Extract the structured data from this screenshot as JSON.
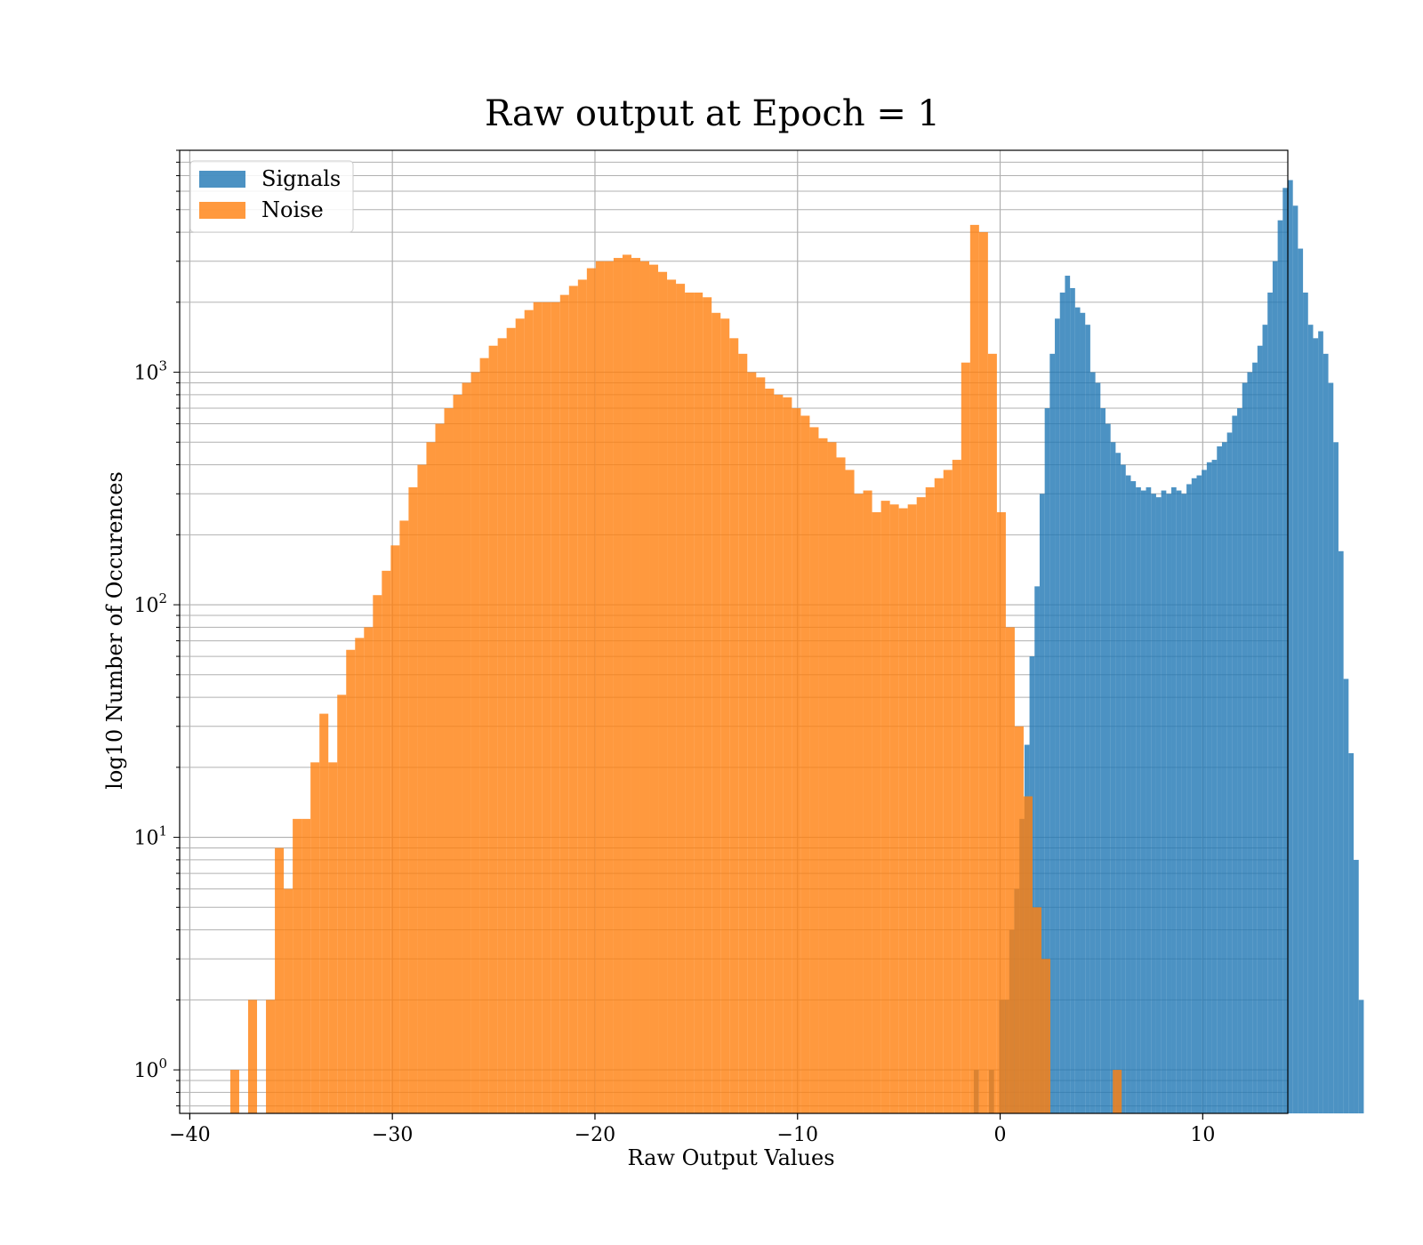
{
  "chart_data": {
    "type": "bar",
    "title": "Raw output at Epoch = 1",
    "xlabel": "Raw Output Values",
    "ylabel": "log10 Number of Occurences",
    "xlim": [
      -40.5,
      14.2
    ],
    "ylim": [
      0.65,
      9000
    ],
    "yscale": "log",
    "grid": true,
    "legend_position": "top-left",
    "x_ticks": [
      {
        "value": -40,
        "label": "−40"
      },
      {
        "value": -30,
        "label": "−30"
      },
      {
        "value": -20,
        "label": "−20"
      },
      {
        "value": -10,
        "label": "−10"
      },
      {
        "value": 0,
        "label": "0"
      },
      {
        "value": 10,
        "label": "10"
      }
    ],
    "y_ticks": [
      {
        "value": 1,
        "base": "10",
        "exp": "0"
      },
      {
        "value": 10,
        "base": "10",
        "exp": "1"
      },
      {
        "value": 100,
        "base": "10",
        "exp": "2"
      },
      {
        "value": 1000,
        "base": "10",
        "exp": "3"
      }
    ],
    "series": [
      {
        "name": "Signals",
        "color": "#1f77b4",
        "x_start": -1.3,
        "bin_width": 0.25,
        "values": [
          1,
          0,
          0,
          1,
          0,
          2,
          2,
          4,
          6,
          12,
          25,
          60,
          120,
          300,
          700,
          1200,
          1700,
          2200,
          2600,
          2300,
          1900,
          1800,
          1600,
          1000,
          900,
          700,
          600,
          500,
          450,
          400,
          360,
          340,
          320,
          310,
          320,
          300,
          290,
          310,
          300,
          320,
          310,
          300,
          330,
          350,
          360,
          380,
          410,
          420,
          480,
          500,
          550,
          650,
          700,
          900,
          1000,
          1100,
          1300,
          1600,
          2200,
          3000,
          4500,
          6200,
          6700,
          5200,
          3400,
          2200,
          1600,
          1400,
          1500,
          1200,
          900,
          500,
          170,
          48,
          23,
          8,
          2
        ]
      },
      {
        "name": "Noise",
        "color": "#ff7f0e",
        "x_start": -38.0,
        "bin_width": 0.44,
        "values": [
          1,
          0,
          2,
          0,
          2,
          9,
          6,
          12,
          12,
          21,
          34,
          21,
          41,
          64,
          72,
          80,
          110,
          140,
          180,
          230,
          320,
          400,
          500,
          600,
          700,
          800,
          900,
          1000,
          1150,
          1300,
          1400,
          1550,
          1700,
          1850,
          2000,
          2000,
          2000,
          2150,
          2350,
          2500,
          2800,
          3000,
          3000,
          3100,
          3200,
          3100,
          3000,
          2900,
          2700,
          2500,
          2400,
          2200,
          2200,
          2100,
          1800,
          1700,
          1400,
          1200,
          1000,
          950,
          850,
          800,
          780,
          700,
          650,
          580,
          520,
          500,
          430,
          380,
          300,
          310,
          250,
          280,
          270,
          260,
          270,
          290,
          320,
          350,
          380,
          420,
          1100,
          4300,
          4000,
          1200,
          250,
          80,
          30,
          15,
          5,
          3,
          0,
          0,
          0,
          0,
          0,
          0,
          0,
          1
        ]
      }
    ]
  }
}
